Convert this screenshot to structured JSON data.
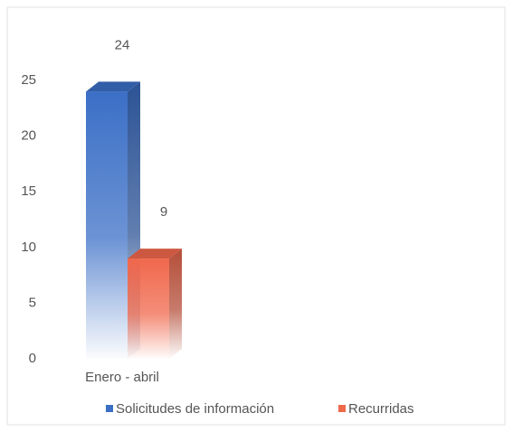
{
  "chart_data": {
    "type": "bar3d",
    "categories": [
      "Enero - abril"
    ],
    "series": [
      {
        "name": "Solicitudes de información",
        "color": "#3b6fc6",
        "values": [
          24
        ]
      },
      {
        "name": "Recurridas",
        "color": "#f0684c",
        "values": [
          9
        ]
      }
    ],
    "ylim": [
      0,
      25
    ],
    "yticks": [
      0,
      5,
      10,
      15,
      20,
      25
    ],
    "grid": false,
    "legend": "bottom"
  }
}
